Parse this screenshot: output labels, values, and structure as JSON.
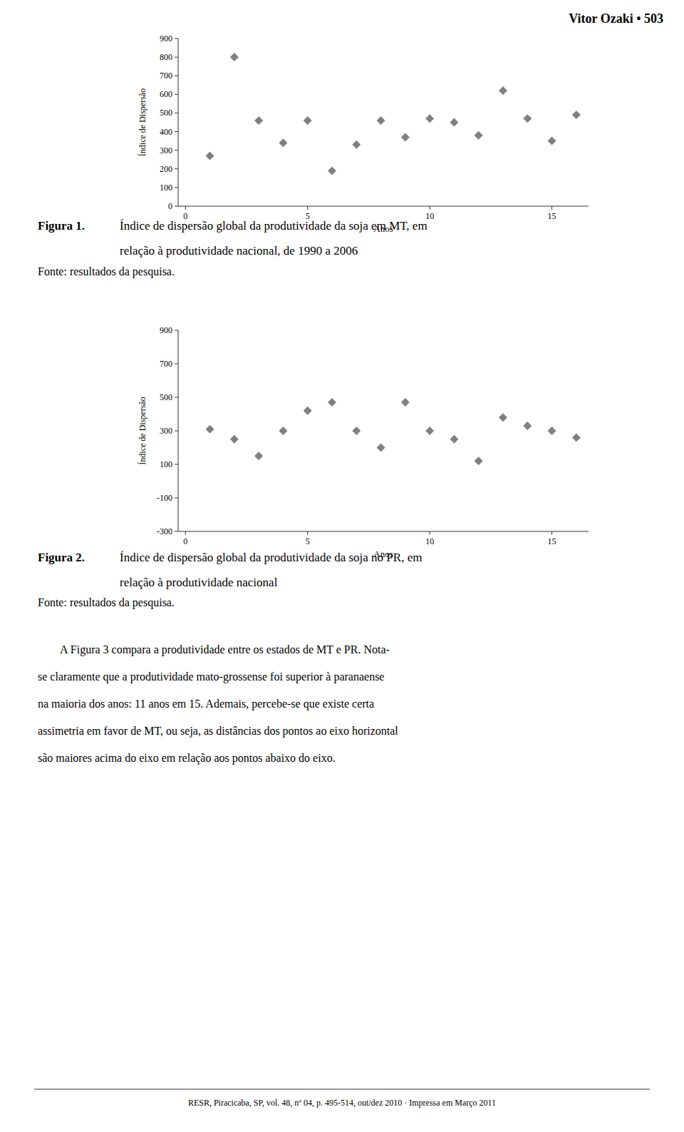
{
  "header": "Vitor Ozaki  •  503",
  "chart_data": [
    {
      "type": "scatter",
      "caption": {
        "label": "Figura 1.",
        "lines": [
          "Índice de dispersão global da produtividade da soja em MT, em",
          "relação à produtividade nacional, de 1990 a 2006"
        ]
      },
      "source": "Fonte: resultados da pesquisa.",
      "xlabel": "Anos",
      "ylabel": "Índice de Dispersão",
      "x": [
        1,
        2,
        3,
        4,
        5,
        6,
        7,
        8,
        9,
        10,
        11,
        12,
        13,
        14,
        15,
        16
      ],
      "values": [
        270,
        800,
        460,
        340,
        460,
        190,
        330,
        460,
        370,
        470,
        450,
        380,
        620,
        470,
        350,
        490
      ],
      "xlim": [
        -0.3,
        16.5
      ],
      "ylim": [
        0,
        900
      ],
      "xticks": [
        0,
        5,
        10,
        15
      ],
      "yticks": [
        0,
        100,
        200,
        300,
        400,
        500,
        600,
        700,
        800,
        900
      ],
      "color": "#808080",
      "marker": "diamond",
      "grid": false
    },
    {
      "type": "scatter",
      "caption": {
        "label": "Figura 2.",
        "lines": [
          "Índice de dispersão global da produtividade da soja no PR, em",
          "relação à produtividade nacional"
        ]
      },
      "source": "Fonte: resultados da pesquisa.",
      "xlabel": "Anos",
      "ylabel": "Índice de Dispersão",
      "x": [
        1,
        2,
        3,
        4,
        5,
        6,
        7,
        8,
        9,
        10,
        11,
        12,
        13,
        14,
        15,
        16
      ],
      "values": [
        310,
        250,
        150,
        300,
        420,
        470,
        300,
        200,
        470,
        300,
        250,
        120,
        380,
        330,
        300,
        260
      ],
      "xlim": [
        -0.3,
        16.5
      ],
      "ylim": [
        -300,
        900
      ],
      "xticks": [
        0,
        5,
        10,
        15
      ],
      "yticks": [
        -300,
        -100,
        100,
        300,
        500,
        700,
        900
      ],
      "color": "#808080",
      "marker": "diamond",
      "grid": false
    }
  ],
  "body": [
    "        A Figura 3 compara a produtividade entre os estados de MT e PR. Nota-",
    "se claramente que a produtividade mato-grossense foi superior à paranaense",
    "na maioria dos anos: 11 anos em 15. Ademais, percebe-se que existe certa",
    "assimetria em favor de MT, ou seja, as distâncias dos pontos ao eixo horizontal",
    "são maiores acima do eixo em relação aos pontos abaixo do eixo."
  ],
  "footer": "RESR, Piracicaba, SP, vol. 48, nº 04, p. 495-514, out/dez 2010 · Impressa em Março 2011"
}
